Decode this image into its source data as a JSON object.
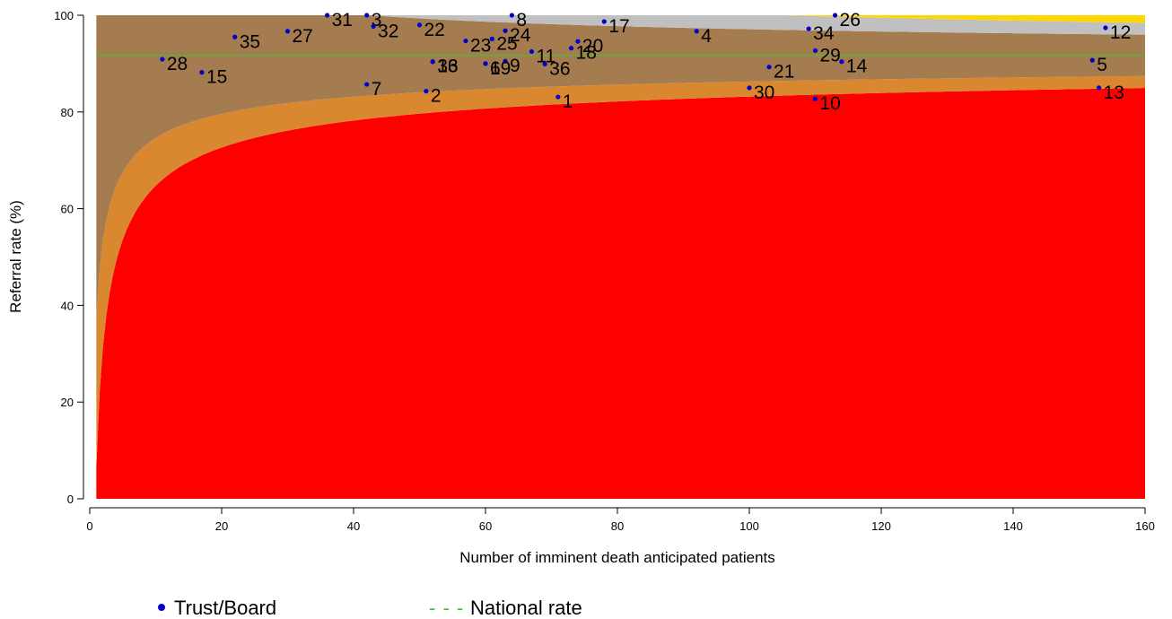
{
  "chart_data": {
    "type": "scatter",
    "title": "",
    "xlabel": "Number of imminent death anticipated patients",
    "ylabel": "Referral rate (%)",
    "xlim": [
      0,
      160
    ],
    "ylim": [
      0,
      100
    ],
    "xticks": [
      0,
      20,
      40,
      60,
      80,
      100,
      120,
      140,
      160
    ],
    "yticks": [
      0,
      20,
      40,
      60,
      80,
      100
    ],
    "national_rate": 91.7,
    "funnel_x_range": [
      1,
      160
    ],
    "bands": [
      {
        "name": "inner_lower",
        "color": "#ff0000"
      },
      {
        "name": "middle_lower",
        "color": "#da8830"
      },
      {
        "name": "central",
        "color": "#a47c50"
      },
      {
        "name": "middle_upper",
        "color": "#c0c0c0"
      },
      {
        "name": "outer_upper",
        "color": "#ffd700"
      }
    ],
    "series": [
      {
        "name": "Trust/Board",
        "color": "#0000cc",
        "points": [
          {
            "label": "1",
            "x": 71,
            "y": 83.1
          },
          {
            "label": "2",
            "x": 51,
            "y": 84.3
          },
          {
            "label": "3",
            "x": 42,
            "y": 100
          },
          {
            "label": "4",
            "x": 92,
            "y": 96.7
          },
          {
            "label": "5",
            "x": 152,
            "y": 90.7
          },
          {
            "label": "6",
            "x": 60,
            "y": 90.0
          },
          {
            "label": "7",
            "x": 42,
            "y": 85.7
          },
          {
            "label": "8",
            "x": 64,
            "y": 100
          },
          {
            "label": "9",
            "x": 63,
            "y": 90.5
          },
          {
            "label": "10",
            "x": 110,
            "y": 82.7
          },
          {
            "label": "11",
            "x": 67,
            "y": 92.5
          },
          {
            "label": "12",
            "x": 154,
            "y": 97.4
          },
          {
            "label": "13",
            "x": 153,
            "y": 85.0
          },
          {
            "label": "14",
            "x": 114,
            "y": 90.4
          },
          {
            "label": "15",
            "x": 17,
            "y": 88.2
          },
          {
            "label": "16",
            "x": 52,
            "y": 90.4
          },
          {
            "label": "17",
            "x": 78,
            "y": 98.7
          },
          {
            "label": "18",
            "x": 73,
            "y": 93.2
          },
          {
            "label": "19",
            "x": 60,
            "y": 90.0
          },
          {
            "label": "20",
            "x": 74,
            "y": 94.6
          },
          {
            "label": "21",
            "x": 103,
            "y": 89.3
          },
          {
            "label": "22",
            "x": 50,
            "y": 98.0
          },
          {
            "label": "23",
            "x": 57,
            "y": 94.7
          },
          {
            "label": "24",
            "x": 63,
            "y": 96.8
          },
          {
            "label": "25",
            "x": 61,
            "y": 95.1
          },
          {
            "label": "26",
            "x": 113,
            "y": 100
          },
          {
            "label": "27",
            "x": 30,
            "y": 96.7
          },
          {
            "label": "28",
            "x": 11,
            "y": 90.9
          },
          {
            "label": "29",
            "x": 110,
            "y": 92.7
          },
          {
            "label": "30",
            "x": 100,
            "y": 85.0
          },
          {
            "label": "31",
            "x": 36,
            "y": 100
          },
          {
            "label": "32",
            "x": 43,
            "y": 97.7
          },
          {
            "label": "33",
            "x": 52,
            "y": 90.4
          },
          {
            "label": "34",
            "x": 109,
            "y": 97.2
          },
          {
            "label": "35",
            "x": 22,
            "y": 95.5
          },
          {
            "label": "36",
            "x": 69,
            "y": 89.9
          }
        ]
      }
    ],
    "legend": {
      "placement": "bottom",
      "items": [
        {
          "label": "Trust/Board",
          "symbol": "dot"
        },
        {
          "label": "National rate",
          "symbol": "dashed-line"
        }
      ]
    }
  }
}
